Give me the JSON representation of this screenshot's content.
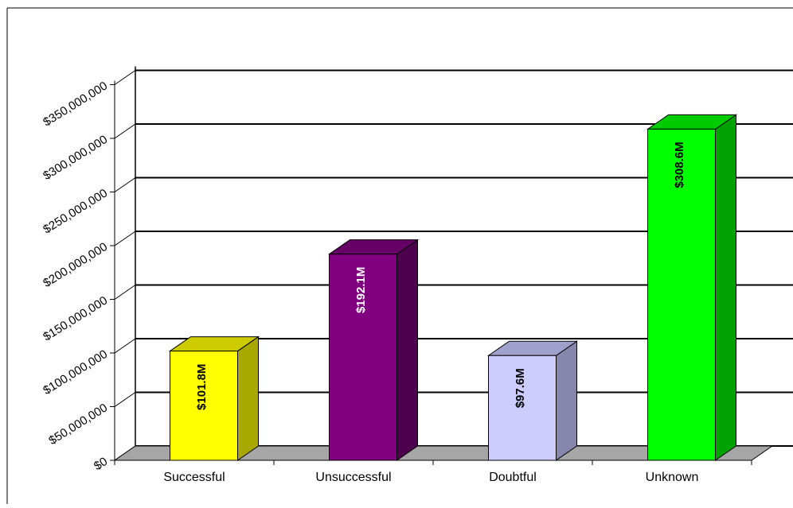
{
  "chart_data": {
    "type": "bar",
    "title": "",
    "xlabel": "",
    "ylabel": "",
    "categories": [
      "Successful",
      "Unsuccessful",
      "Doubtful",
      "Unknown"
    ],
    "values": [
      101800000,
      192100000,
      97600000,
      308600000
    ],
    "data_labels": [
      "$101.8M",
      "$192.1M",
      "$97.6M",
      "$308.6M"
    ],
    "ylim": [
      0,
      350000000
    ],
    "yticks": [
      0,
      50000000,
      100000000,
      150000000,
      200000000,
      250000000,
      300000000,
      350000000
    ],
    "ytick_labels": [
      "$0",
      "$50,000,000",
      "$100,000,000",
      "$150,000,000",
      "$200,000,000",
      "$250,000,000",
      "$300,000,000",
      "$350,000,000"
    ],
    "grid": true,
    "legend": "none",
    "colors": {
      "bars": [
        {
          "front": "#ffff00",
          "top": "#cccc00",
          "side": "#a8a800"
        },
        {
          "front": "#800080",
          "top": "#660066",
          "side": "#4d004d"
        },
        {
          "front": "#ccccff",
          "top": "#a0a0cc",
          "side": "#8686ad"
        },
        {
          "front": "#00ff00",
          "top": "#00cc00",
          "side": "#00a200"
        }
      ],
      "floor": "#a6a6a6",
      "grid": "#000000"
    }
  }
}
